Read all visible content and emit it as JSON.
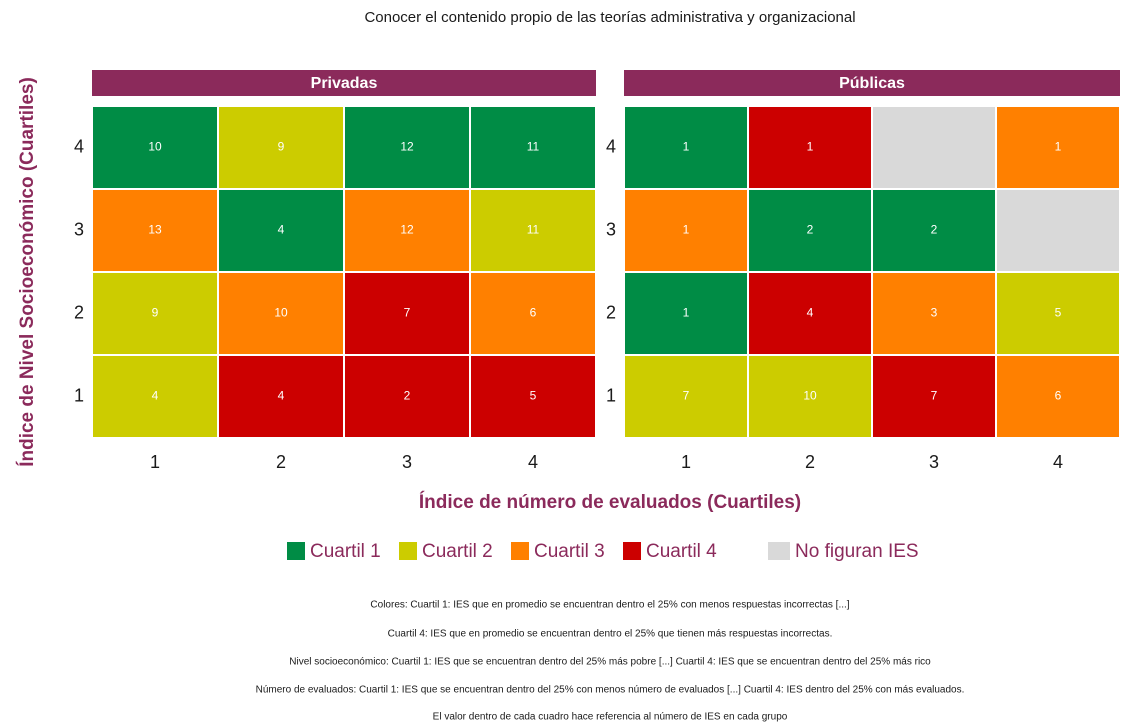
{
  "chart_data": {
    "type": "heatmap",
    "title": "Conocer el contenido propio de las teorías administrativa y organizacional",
    "x_label": "Índice de número de evaluados (Cuartiles)",
    "y_label": "Índice de Nivel Socioeconómico (Cuartiles)",
    "xticks": [
      1,
      2,
      3,
      4
    ],
    "yticks": [
      1,
      2,
      3,
      4
    ],
    "legend": [
      {
        "name": "Cuartil 1",
        "color": "#008c45"
      },
      {
        "name": "Cuartil 2",
        "color": "#cccc00"
      },
      {
        "name": "Cuartil 3",
        "color": "#ff8000"
      },
      {
        "name": "Cuartil 4",
        "color": "#cc0000"
      },
      {
        "name": "No figuran IES",
        "color": "#d9d9d9"
      }
    ],
    "panels": [
      {
        "name": "Privadas",
        "values": [
          [
            4,
            4,
            2,
            5
          ],
          [
            9,
            10,
            7,
            6
          ],
          [
            13,
            4,
            12,
            11
          ],
          [
            10,
            9,
            12,
            11
          ]
        ],
        "groups": [
          [
            "Cuartil 2",
            "Cuartil 4",
            "Cuartil 4",
            "Cuartil 4"
          ],
          [
            "Cuartil 2",
            "Cuartil 3",
            "Cuartil 4",
            "Cuartil 3"
          ],
          [
            "Cuartil 3",
            "Cuartil 1",
            "Cuartil 3",
            "Cuartil 2"
          ],
          [
            "Cuartil 1",
            "Cuartil 2",
            "Cuartil 1",
            "Cuartil 1"
          ]
        ]
      },
      {
        "name": "Públicas",
        "values": [
          [
            7,
            10,
            7,
            6
          ],
          [
            1,
            4,
            3,
            5
          ],
          [
            1,
            2,
            2,
            null
          ],
          [
            1,
            1,
            null,
            1
          ]
        ],
        "groups": [
          [
            "Cuartil 2",
            "Cuartil 2",
            "Cuartil 4",
            "Cuartil 3"
          ],
          [
            "Cuartil 1",
            "Cuartil 4",
            "Cuartil 3",
            "Cuartil 2"
          ],
          [
            "Cuartil 3",
            "Cuartil 1",
            "Cuartil 1",
            "No figuran IES"
          ],
          [
            "Cuartil 1",
            "Cuartil 4",
            "No figuran IES",
            "Cuartil 3"
          ]
        ]
      }
    ],
    "notes": [
      "Colores: Cuartil 1:  IES que en promedio se encuentran dentro el 25% con menos respuestas incorrectas [...]",
      "Cuartil 4: IES que en promedio se encuentran dentro el 25% que tienen más respuestas incorrectas.",
      "Nivel socioeconómico: Cuartil 1: IES que se encuentran dentro del 25% más pobre [...] Cuartil 4: IES que se encuentran dentro del 25% más rico",
      "Número de evaluados: Cuartil 1: IES que se encuentran dentro del 25% con menos número de evaluados [...] Cuartil 4: IES dentro del 25% con más evaluados.",
      "El valor dentro de cada cuadro hace referencia al número de IES en cada grupo"
    ]
  }
}
